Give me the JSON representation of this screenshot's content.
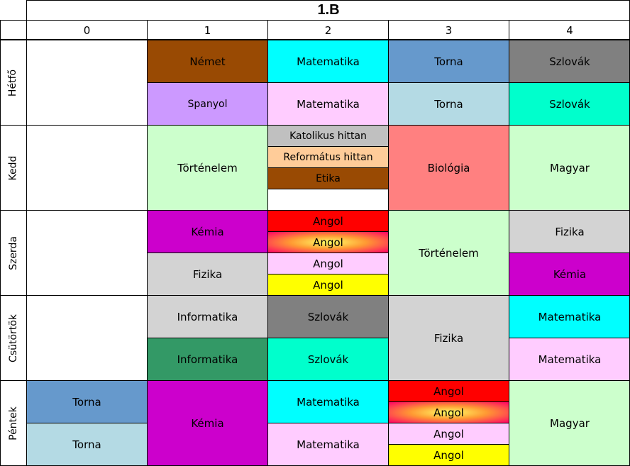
{
  "title": "1.B",
  "periods": [
    "0",
    "1",
    "2",
    "3",
    "4"
  ],
  "days": [
    "Hétfő",
    "Kedd",
    "Szerda",
    "Csütörtök",
    "Péntek"
  ],
  "colors": {
    "brown": "#994a03",
    "cyan": "#00ffff",
    "steelblue": "#6699cc",
    "gray": "#808080",
    "lavender": "#cc99ff",
    "pink": "#ffccff",
    "lightblue": "#b4dae4",
    "aquagreen": "#00ffcc",
    "lightgray": "#d3d3d3",
    "peach": "#ffcc99",
    "mint": "#ccffcc",
    "salmon": "#ff8080",
    "magenta": "#cc00cc",
    "red": "#ff0000",
    "yellow": "#ffff00",
    "green": "#339966"
  },
  "lessons": {
    "mon": {
      "p1a": "Német",
      "p1b": "Spanyol",
      "p2a": "Matematika",
      "p2b": "Matematika",
      "p3a": "Torna",
      "p3b": "Torna",
      "p4a": "Szlovák",
      "p4b": "Szlovák"
    },
    "tue": {
      "p1": "Történelem",
      "p2a": "Katolikus hittan",
      "p2b": "Református hittan",
      "p2c": "Etika",
      "p3": "Biológia",
      "p4": "Magyar"
    },
    "wed": {
      "p1a": "Kémia",
      "p1b": "Fizika",
      "p2a": "Angol",
      "p2b": "Angol",
      "p2c": "Angol",
      "p2d": "Angol",
      "p3": "Történelem",
      "p4a": "Fizika",
      "p4b": "Kémia"
    },
    "thu": {
      "p1a": "Informatika",
      "p1b": "Informatika",
      "p2a": "Szlovák",
      "p2b": "Szlovák",
      "p3": "Fizika",
      "p4a": "Matematika",
      "p4b": "Matematika"
    },
    "fri": {
      "p0a": "Torna",
      "p0b": "Torna",
      "p1": "Kémia",
      "p2a": "Matematika",
      "p2b": "Matematika",
      "p3a": "Angol",
      "p3b": "Angol",
      "p3c": "Angol",
      "p3d": "Angol",
      "p4": "Magyar"
    }
  }
}
